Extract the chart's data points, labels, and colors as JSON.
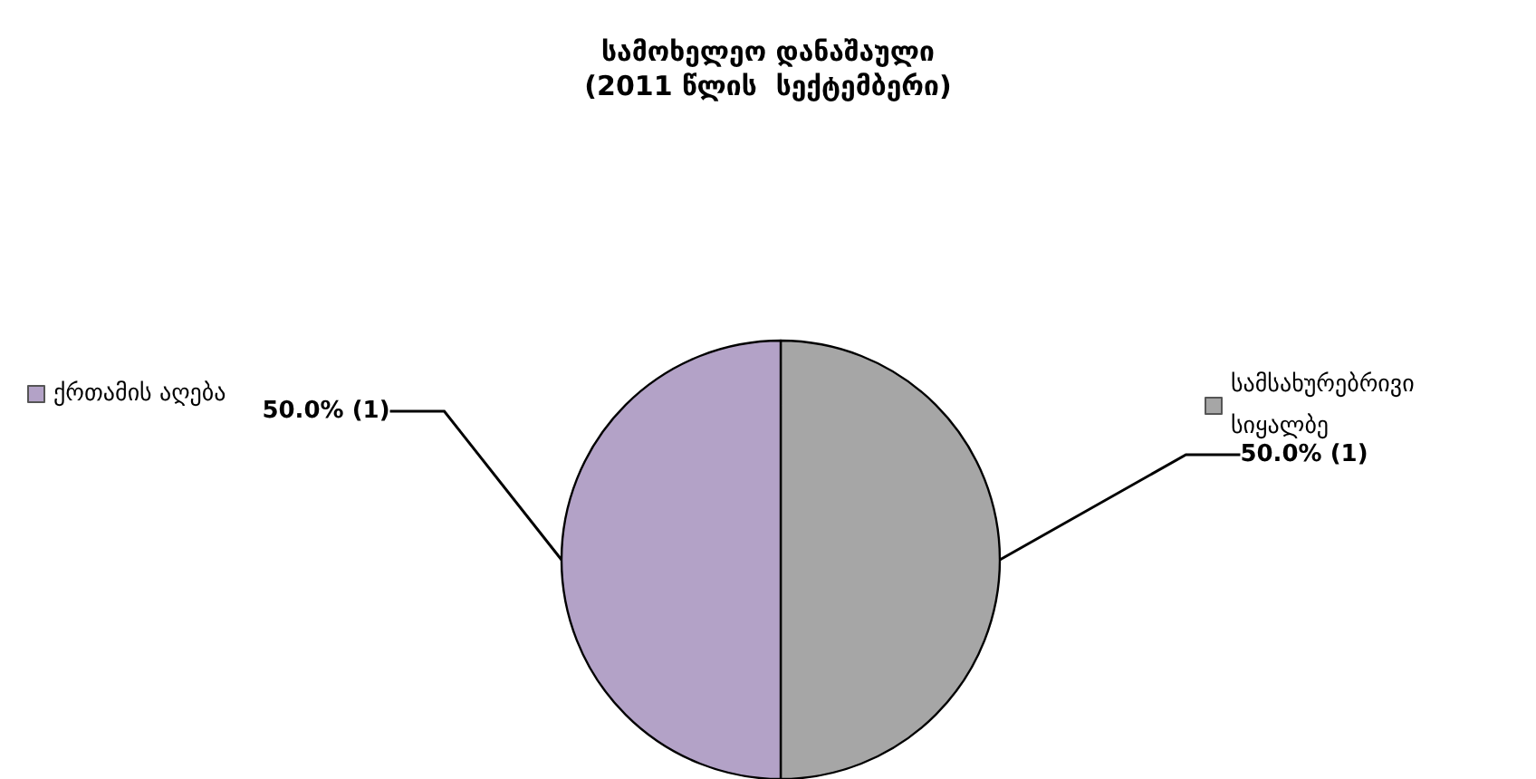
{
  "chart_data": {
    "type": "pie",
    "title": "სამოხელეო დანაშაული",
    "subtitle": "(2011 წლის  სექტემბერი)",
    "categories": [
      "სამსახურებრივი სიყალბე",
      "ქრთამის აღება"
    ],
    "values": [
      1,
      1
    ],
    "value_labels": [
      "50.0% (1)",
      "50.0% (1)"
    ],
    "colors": [
      "#a6a6a6",
      "#b3a2c7"
    ],
    "legend": "top"
  }
}
